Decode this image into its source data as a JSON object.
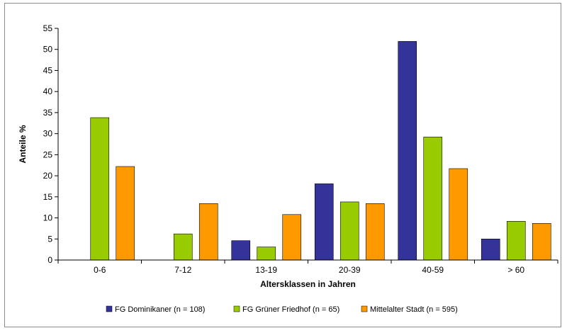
{
  "chart_data": {
    "type": "bar",
    "title": "",
    "xlabel": "Altersklassen in Jahren",
    "ylabel": "Anteile %",
    "categories": [
      "0-6",
      "7-12",
      "13-19",
      "20-39",
      "40-59",
      "> 60"
    ],
    "ylim": [
      0,
      55
    ],
    "yticks": [
      0,
      5,
      10,
      15,
      20,
      25,
      30,
      35,
      40,
      45,
      50,
      55
    ],
    "grid": false,
    "legend_position": "bottom",
    "series": [
      {
        "name": "FG Dominikaner (n = 108)",
        "color": "#333399",
        "values": [
          0,
          0,
          4.6,
          18.1,
          51.9,
          5
        ]
      },
      {
        "name": "FG Grüner Friedhof (n = 65)",
        "color": "#99cc00",
        "values": [
          33.8,
          6.2,
          3.1,
          13.8,
          29.2,
          9.2
        ]
      },
      {
        "name": "Mittelalter Stadt (n = 595)",
        "color": "#ff9900",
        "values": [
          22.2,
          13.4,
          10.8,
          13.4,
          21.7,
          8.7
        ]
      }
    ]
  }
}
